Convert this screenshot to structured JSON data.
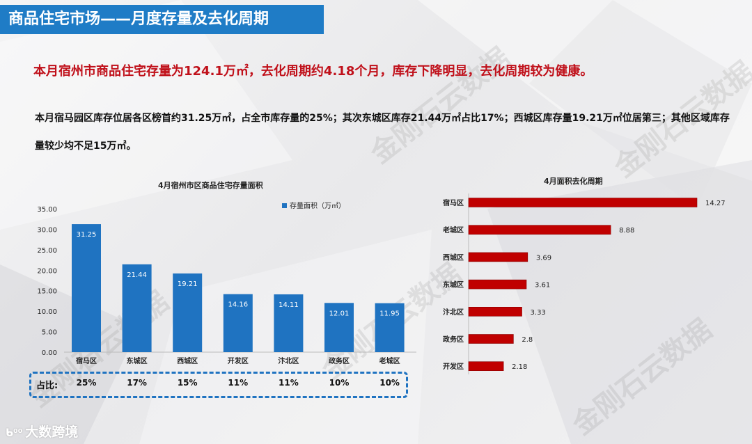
{
  "page": {
    "title": "商品住宅市场——月度存量及去化周期",
    "headline": "本月宿州市商品住宅存量为124.1万㎡，去化周期约4.18个月，库存下降明显，去化周期较为健康。",
    "summary": "本月宿马园区库存位居各区榜首约31.25万㎡，占全市库存量的25%；其次东城区库存21.44万㎡占比17%；西城区库存量19.21万㎡位居第三；其他区域库存量较少均不足15万㎡。",
    "watermark": "金刚石云数据",
    "footer_brand": "大数跨境",
    "share_label": "占比:"
  },
  "colors": {
    "title_bar": "#1f7cc6",
    "headline": "#c0101a",
    "bar_blue": "#1f73c1",
    "bar_red": "#c00000"
  },
  "chart_data": [
    {
      "type": "bar",
      "title": "4月宿州市区商品住宅存量面积",
      "categories": [
        "宿马区",
        "东城区",
        "西城区",
        "开发区",
        "汴北区",
        "政务区",
        "老城区"
      ],
      "series": [
        {
          "name": "存量面积（万㎡）",
          "values": [
            31.25,
            21.44,
            19.21,
            14.16,
            14.11,
            12.01,
            11.95
          ]
        }
      ],
      "value_labels": [
        "31.25",
        "21.44",
        "19.21",
        "14.16",
        "14.11",
        "12.01",
        "11.95"
      ],
      "y_ticks": [
        "35.00",
        "30.00",
        "25.00",
        "20.00",
        "15.00",
        "10.00",
        "5.00",
        "0.00"
      ],
      "ylim": [
        0,
        35
      ],
      "legend": "top-right",
      "share": [
        "25%",
        "17%",
        "15%",
        "11%",
        "11%",
        "10%",
        "10%"
      ],
      "grid": false
    },
    {
      "type": "bar",
      "orientation": "horizontal",
      "title": "4月面积去化周期",
      "categories": [
        "宿马区",
        "老城区",
        "西城区",
        "东城区",
        "汴北区",
        "政务区",
        "开发区"
      ],
      "values": [
        14.27,
        8.88,
        3.69,
        3.61,
        3.33,
        2.8,
        2.18
      ],
      "value_labels": [
        "14.27",
        "8.88",
        "3.69",
        "3.61",
        "3.33",
        "2.8",
        "2.18"
      ],
      "xlim": [
        0,
        14.27
      ],
      "grid": false
    }
  ]
}
